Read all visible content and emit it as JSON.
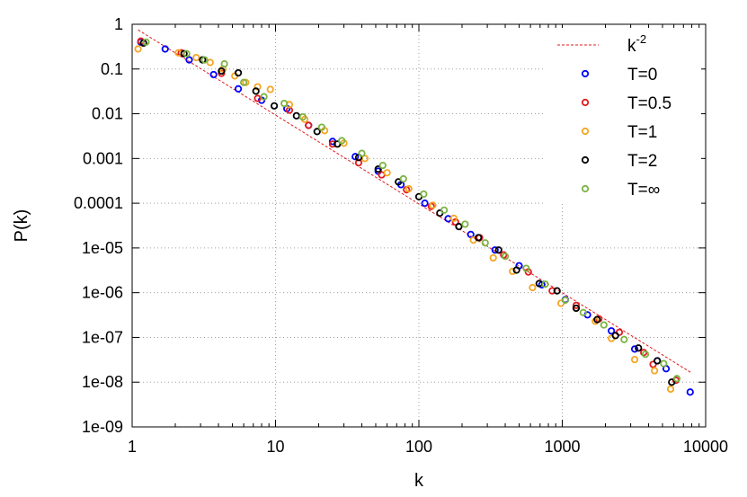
{
  "chart_data": {
    "type": "scatter",
    "xlabel": "k",
    "ylabel": "P(k)",
    "xscale": "log",
    "yscale": "log",
    "xlim": [
      1,
      10000
    ],
    "ylim": [
      1e-09,
      1
    ],
    "grid": true,
    "legend_position": "top-right",
    "x_ticks": [
      {
        "value": 1,
        "label": "1"
      },
      {
        "value": 10,
        "label": "10"
      },
      {
        "value": 100,
        "label": "100"
      },
      {
        "value": 1000,
        "label": "1000"
      },
      {
        "value": 10000,
        "label": "10000"
      }
    ],
    "y_ticks": [
      {
        "value": 1,
        "label": "1"
      },
      {
        "value": 0.1,
        "label": "0.1"
      },
      {
        "value": 0.01,
        "label": "0.01"
      },
      {
        "value": 0.001,
        "label": "0.001"
      },
      {
        "value": 0.0001,
        "label": "0.0001"
      },
      {
        "value": 1e-05,
        "label": "1e-05"
      },
      {
        "value": 1e-06,
        "label": "1e-06"
      },
      {
        "value": 1e-07,
        "label": "1e-07"
      },
      {
        "value": 1e-08,
        "label": "1e-08"
      },
      {
        "value": 1e-09,
        "label": "1e-09"
      }
    ],
    "reference_line": {
      "label_base": "k",
      "label_exp": "-2",
      "color": "#e31a1c",
      "x": [
        1.1,
        8000
      ],
      "y": [
        0.75,
        1.6e-08
      ]
    },
    "series": [
      {
        "name": "T=0",
        "color": "#0000ff",
        "points": [
          [
            1.15,
            0.4
          ],
          [
            1.7,
            0.28
          ],
          [
            2.5,
            0.16
          ],
          [
            3.7,
            0.075
          ],
          [
            5.5,
            0.036
          ],
          [
            8,
            0.02
          ],
          [
            12,
            0.013
          ],
          [
            17,
            0.0055
          ],
          [
            25,
            0.0024
          ],
          [
            36,
            0.0011
          ],
          [
            52,
            0.00052
          ],
          [
            75,
            0.00026
          ],
          [
            110,
            0.0001
          ],
          [
            160,
            4.5e-05
          ],
          [
            230,
            2e-05
          ],
          [
            340,
            9e-06
          ],
          [
            500,
            4e-06
          ],
          [
            720,
            1.5e-06
          ],
          [
            1050,
            7e-07
          ],
          [
            1500,
            3.2e-07
          ],
          [
            2200,
            1.4e-07
          ],
          [
            3200,
            5.5e-08
          ],
          [
            4600,
            3e-08
          ],
          [
            5300,
            2e-08
          ],
          [
            7800,
            6e-09
          ]
        ]
      },
      {
        "name": "T=0.5",
        "color": "#e31a1c",
        "points": [
          [
            1.15,
            0.42
          ],
          [
            2.2,
            0.23
          ],
          [
            4.2,
            0.08
          ],
          [
            7.5,
            0.022
          ],
          [
            12.5,
            0.012
          ],
          [
            17,
            0.0055
          ],
          [
            25,
            0.0021
          ],
          [
            38,
            0.0008
          ],
          [
            55,
            0.00043
          ],
          [
            82,
            0.0002
          ],
          [
            122,
            8.5e-05
          ],
          [
            180,
            3.8e-05
          ],
          [
            265,
            1.7e-05
          ],
          [
            390,
            7e-06
          ],
          [
            580,
            2.9e-06
          ],
          [
            850,
            1.1e-06
          ],
          [
            1250,
            5.2e-07
          ],
          [
            1800,
            2.6e-07
          ],
          [
            2500,
            1.3e-07
          ],
          [
            3700,
            4.6e-08
          ],
          [
            4300,
            2.5e-08
          ],
          [
            6200,
            1.1e-08
          ]
        ]
      },
      {
        "name": "T=1",
        "color": "#f5a623",
        "points": [
          [
            1.1,
            0.28
          ],
          [
            2.1,
            0.23
          ],
          [
            2.8,
            0.18
          ],
          [
            3.5,
            0.14
          ],
          [
            4.3,
            0.1
          ],
          [
            5.2,
            0.07
          ],
          [
            6.2,
            0.05
          ],
          [
            7.5,
            0.04
          ],
          [
            9.2,
            0.035
          ],
          [
            12.5,
            0.016
          ],
          [
            16,
            0.0075
          ],
          [
            22,
            0.0042
          ],
          [
            30,
            0.0022
          ],
          [
            42,
            0.001
          ],
          [
            60,
            0.00048
          ],
          [
            85,
            0.00021
          ],
          [
            125,
            9e-05
          ],
          [
            175,
            4.6e-05
          ],
          [
            240,
            1.5e-05
          ],
          [
            330,
            6e-06
          ],
          [
            450,
            3e-06
          ],
          [
            620,
            1.3e-06
          ],
          [
            980,
            5.8e-07
          ],
          [
            1250,
            4.5e-07
          ],
          [
            1700,
            2.3e-07
          ],
          [
            2200,
            9.5e-08
          ],
          [
            3200,
            3.2e-08
          ],
          [
            4400,
            1.8e-08
          ],
          [
            5700,
            7e-09
          ]
        ]
      },
      {
        "name": "T=2",
        "color": "#000000",
        "points": [
          [
            1.2,
            0.38
          ],
          [
            2.3,
            0.22
          ],
          [
            3.1,
            0.16
          ],
          [
            4.2,
            0.09
          ],
          [
            5.5,
            0.082
          ],
          [
            7.3,
            0.032
          ],
          [
            9.8,
            0.015
          ],
          [
            14,
            0.009
          ],
          [
            19.5,
            0.004
          ],
          [
            27,
            0.0021
          ],
          [
            38,
            0.00105
          ],
          [
            52,
            0.00058
          ],
          [
            72,
            0.0003
          ],
          [
            100,
            0.00014
          ],
          [
            140,
            6e-05
          ],
          [
            190,
            3e-05
          ],
          [
            260,
            1.7e-05
          ],
          [
            360,
            9e-06
          ],
          [
            480,
            3.2e-06
          ],
          [
            690,
            1.6e-06
          ],
          [
            920,
            1.1e-06
          ],
          [
            1250,
            4.5e-07
          ],
          [
            1750,
            2.5e-07
          ],
          [
            2350,
            1.1e-07
          ],
          [
            3400,
            5.8e-08
          ],
          [
            4600,
            3e-08
          ],
          [
            5800,
            1e-08
          ]
        ]
      },
      {
        "name": "T=∞",
        "color": "#7cb342",
        "points": [
          [
            1.25,
            0.4
          ],
          [
            2.4,
            0.22
          ],
          [
            3.2,
            0.16
          ],
          [
            4.4,
            0.13
          ],
          [
            6,
            0.05
          ],
          [
            8.3,
            0.024
          ],
          [
            11.5,
            0.017
          ],
          [
            15.5,
            0.0085
          ],
          [
            21,
            0.005
          ],
          [
            29,
            0.0025
          ],
          [
            40,
            0.0013
          ],
          [
            56,
            0.0007
          ],
          [
            78,
            0.00035
          ],
          [
            108,
            0.00016
          ],
          [
            150,
            7e-05
          ],
          [
            210,
            3.4e-05
          ],
          [
            290,
            1.3e-05
          ],
          [
            400,
            6.5e-06
          ],
          [
            560,
            3.5e-06
          ],
          [
            760,
            1.55e-06
          ],
          [
            1050,
            6.8e-07
          ],
          [
            1400,
            3.6e-07
          ],
          [
            1950,
            1.9e-07
          ],
          [
            2700,
            9e-08
          ],
          [
            3800,
            4.2e-08
          ],
          [
            5100,
            2.6e-08
          ],
          [
            6300,
            1.2e-08
          ]
        ]
      }
    ]
  }
}
